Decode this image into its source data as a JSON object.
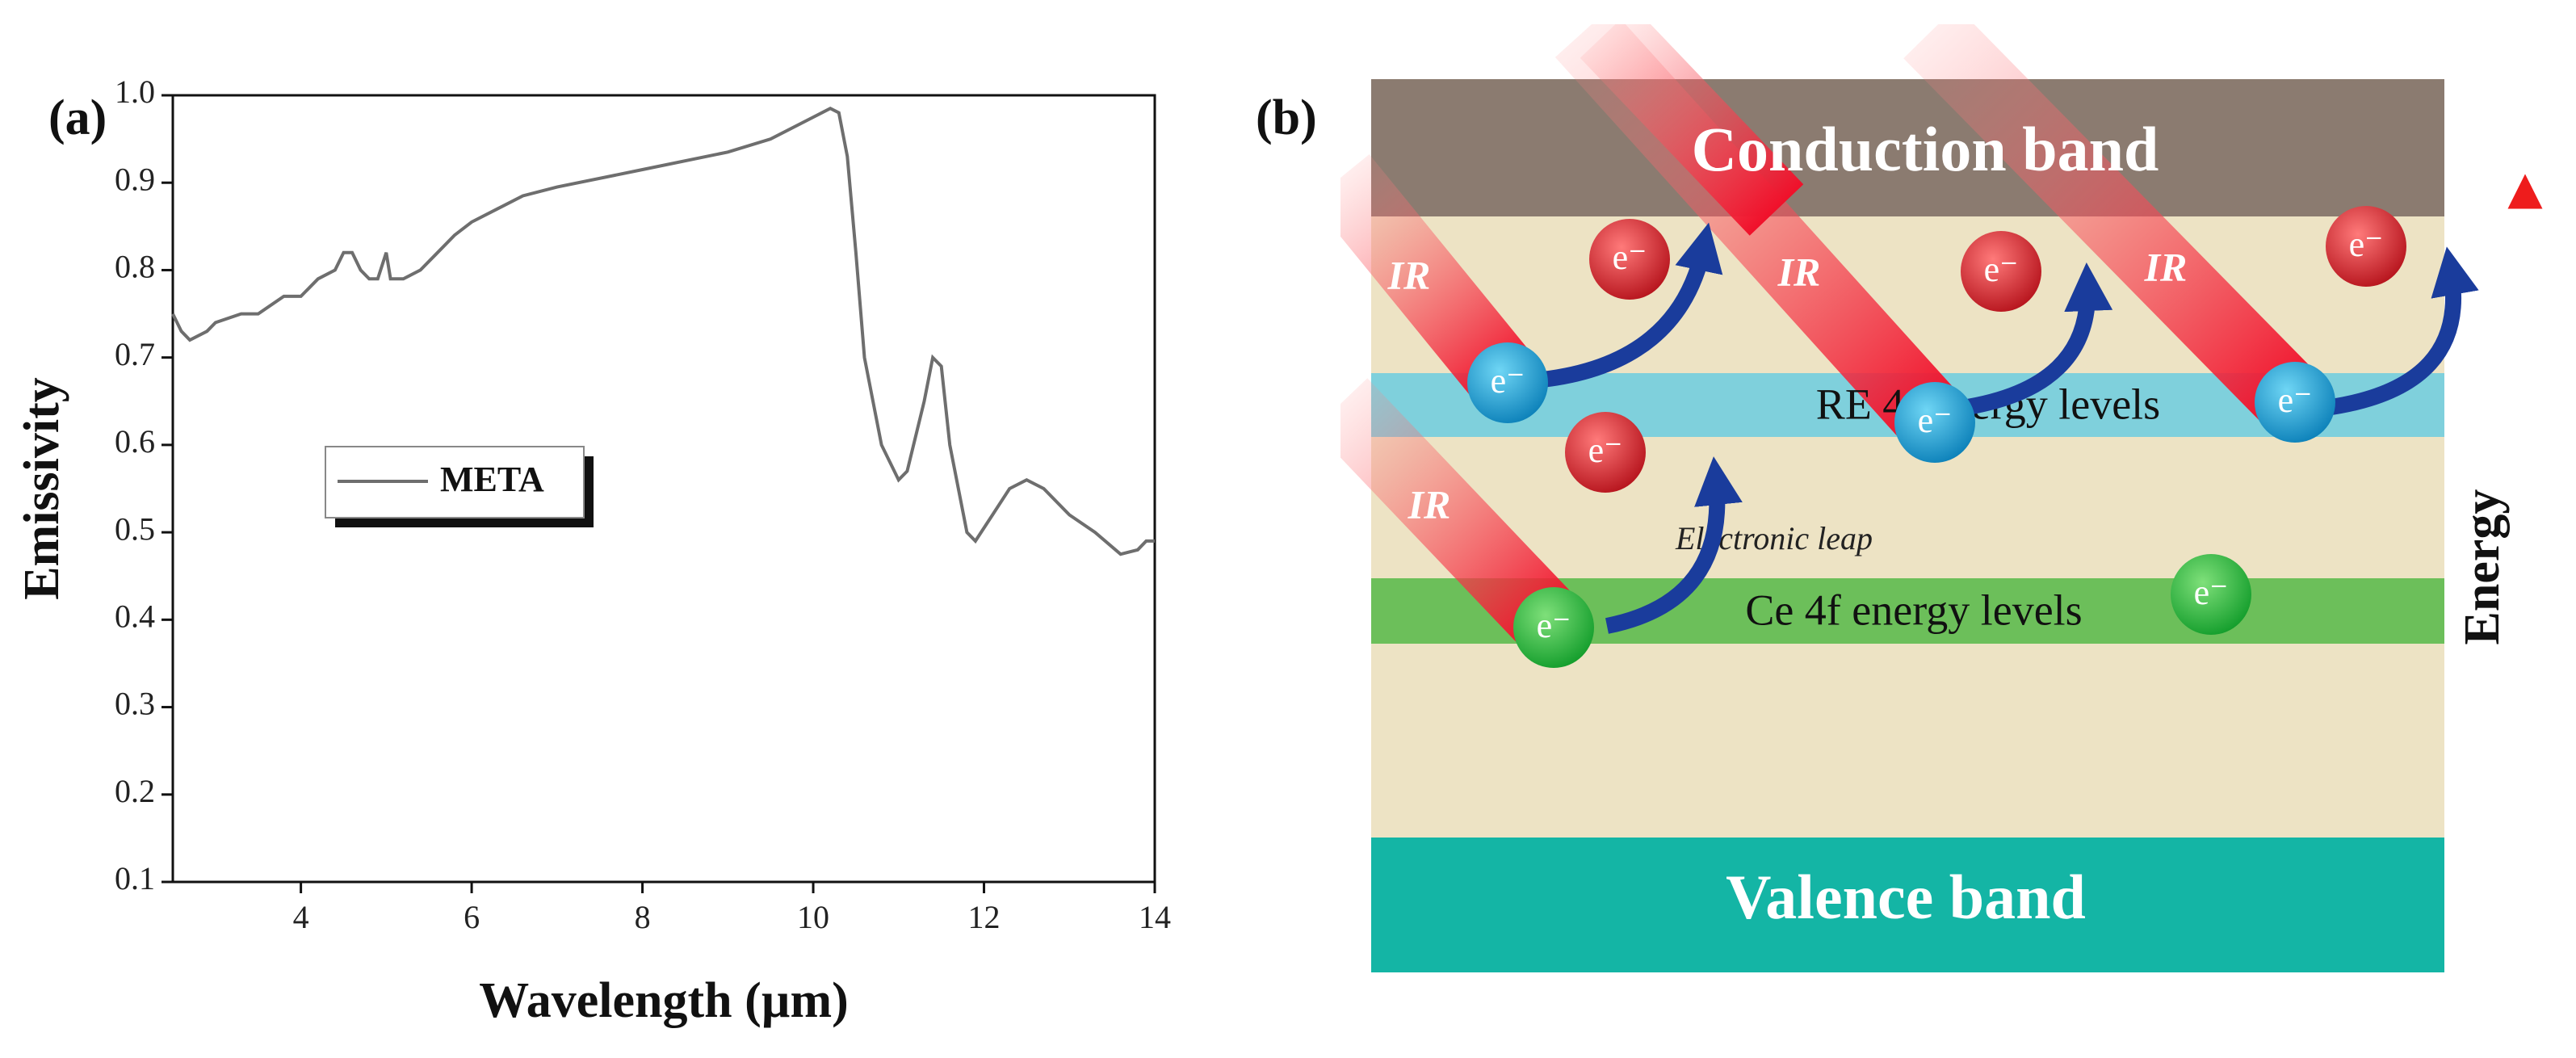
{
  "chart_data": {
    "type": "line",
    "panel_label": "(a)",
    "xlabel": "Wavelength (µm)",
    "ylabel": "Emissivity",
    "xlim": [
      2.5,
      14
    ],
    "xticks": [
      4,
      6,
      8,
      10,
      12,
      14
    ],
    "ylim": [
      0.1,
      1.0
    ],
    "yticks": [
      0.1,
      0.2,
      0.3,
      0.4,
      0.5,
      0.6,
      0.7,
      0.8,
      0.9,
      {
        "value": 1.0,
        "label": "1.0"
      }
    ],
    "series": [
      {
        "name": "META",
        "color": "#6e6e6e",
        "x": [
          2.5,
          2.6,
          2.7,
          2.9,
          3.0,
          3.3,
          3.5,
          3.8,
          4.0,
          4.2,
          4.4,
          4.5,
          4.6,
          4.7,
          4.8,
          4.9,
          5.0,
          5.05,
          5.2,
          5.4,
          5.6,
          5.8,
          6.0,
          6.3,
          6.6,
          7.0,
          8.0,
          9.0,
          9.5,
          10.0,
          10.2,
          10.3,
          10.4,
          10.5,
          10.6,
          10.8,
          11.0,
          11.1,
          11.3,
          11.4,
          11.5,
          11.6,
          11.8,
          11.9,
          12.1,
          12.3,
          12.5,
          12.7,
          13.0,
          13.3,
          13.6,
          13.8,
          13.9,
          14.0
        ],
        "values": [
          0.75,
          0.73,
          0.72,
          0.73,
          0.74,
          0.75,
          0.75,
          0.77,
          0.77,
          0.79,
          0.8,
          0.82,
          0.82,
          0.8,
          0.79,
          0.79,
          0.82,
          0.79,
          0.79,
          0.8,
          0.82,
          0.84,
          0.855,
          0.87,
          0.885,
          0.895,
          0.915,
          0.935,
          0.95,
          0.975,
          0.985,
          0.98,
          0.93,
          0.82,
          0.7,
          0.6,
          0.56,
          0.57,
          0.65,
          0.7,
          0.69,
          0.6,
          0.5,
          0.49,
          0.52,
          0.55,
          0.56,
          0.55,
          0.52,
          0.5,
          0.475,
          0.48,
          0.49,
          0.49
        ]
      }
    ]
  },
  "diagram": {
    "panel_label": "(b)",
    "conduction_band": "Conduction band",
    "valence_band": "Valence band",
    "re_levels": "RE 4f energy levels",
    "ce_levels": "Ce 4f energy levels",
    "leap": "Electronic leap",
    "ir": "IR",
    "electron": "e⁻",
    "energy": "Energy"
  }
}
